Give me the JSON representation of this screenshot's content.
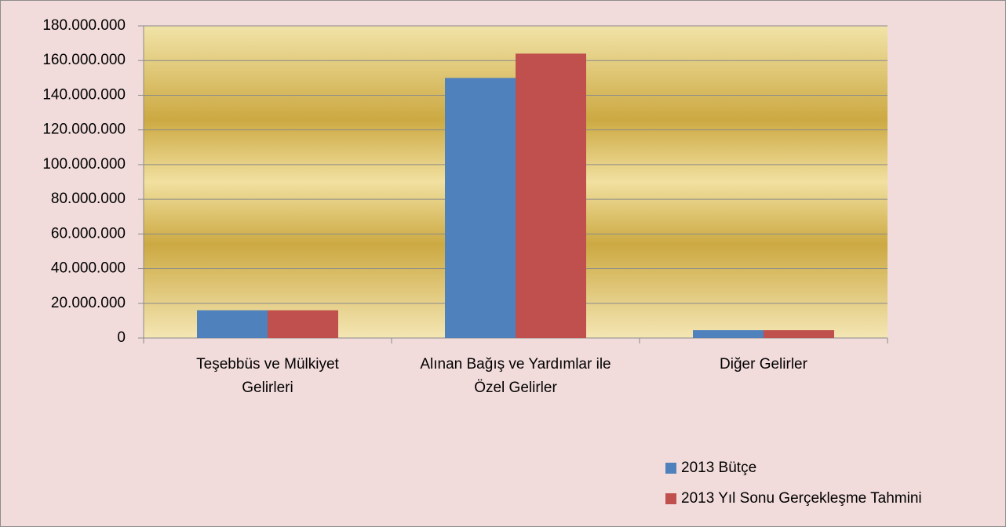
{
  "chart_data": {
    "type": "bar",
    "categories": [
      "Teşebbüs ve Mülkiyet\nGelirleri",
      "Alınan Bağış ve Yardımlar ile\nÖzel Gelirler",
      "Diğer Gelirler"
    ],
    "series": [
      {
        "name": "2013 Bütçe",
        "color": "#4f81bd",
        "values": [
          16000000,
          150000000,
          4500000
        ]
      },
      {
        "name": "2013 Yıl Sonu Gerçekleşme Tahmini",
        "color": "#c0504d",
        "values": [
          16000000,
          164000000,
          4500000
        ]
      }
    ],
    "ylim": [
      0,
      180000000
    ],
    "yticks": [
      0,
      {
        "value": 20000000,
        "label": "20.000.000"
      },
      {
        "value": 40000000,
        "label": "40.000.000"
      },
      {
        "value": 60000000,
        "label": "60.000.000"
      },
      {
        "value": 80000000,
        "label": "80.000.000"
      },
      {
        "value": 100000000,
        "label": "100.000.000"
      },
      {
        "value": 120000000,
        "label": "120.000.000"
      },
      {
        "value": 140000000,
        "label": "140.000.000"
      },
      {
        "value": 160000000,
        "label": "160.000.000"
      },
      {
        "value": 180000000,
        "label": "180.000.000"
      }
    ],
    "grid": true,
    "legend": "bottom-right"
  }
}
